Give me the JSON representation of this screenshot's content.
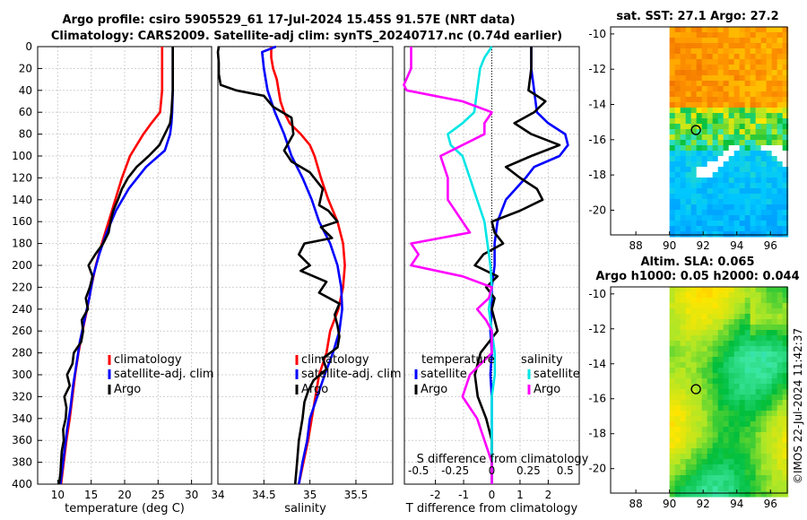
{
  "title_line1": "Argo profile: csiro 5905529_61 17-Jul-2024 15.45S 91.57E (NRT data)",
  "title_line2": "Climatology: CARS2009. Satellite-adj clim: synTS_20240717.nc (0.74d earlier)",
  "sst_title": "sat. SST: 27.1 Argo: 27.2",
  "sla_title1": "Altim. SLA: 0.065",
  "sla_title2": "Argo h1000: 0.05 h2000: 0.044",
  "side_stamp": "©IMOS 22-Jul-2024 11:42:37",
  "colors": {
    "climatology": "#ff0000",
    "satellite": "#0000ff",
    "argo": "#000000",
    "t_sat": "#0000ff",
    "s_sat": "#00e5e5",
    "s_argo": "#ff00ff"
  },
  "chart_data": [
    {
      "type": "line",
      "name": "temperature",
      "xlabel": "temperature (deg C)",
      "ylabel": "",
      "xlim": [
        7,
        33
      ],
      "ylim": [
        400,
        0
      ],
      "xticks": [
        10,
        15,
        20,
        25,
        30
      ],
      "yticks": [
        0,
        20,
        40,
        60,
        80,
        100,
        120,
        140,
        160,
        180,
        200,
        220,
        240,
        260,
        280,
        300,
        320,
        340,
        360,
        380,
        400
      ],
      "legend": [
        "climatology",
        "satellite-adj. clim",
        "Argo"
      ],
      "series": [
        {
          "name": "climatology",
          "color": "#ff0000",
          "depth": [
            0,
            20,
            40,
            60,
            70,
            80,
            100,
            120,
            140,
            160,
            180,
            200,
            220,
            240,
            260,
            280,
            300,
            320,
            340,
            360,
            380,
            400
          ],
          "values": [
            25.6,
            25.6,
            25.6,
            25.3,
            24.0,
            22.8,
            20.8,
            19.6,
            18.6,
            17.6,
            16.6,
            15.7,
            15.0,
            14.4,
            13.7,
            13.1,
            12.6,
            12.2,
            11.8,
            11.3,
            10.9,
            10.5
          ]
        },
        {
          "name": "satellite-adj. clim",
          "color": "#0000ff",
          "depth": [
            0,
            20,
            40,
            60,
            70,
            80,
            95,
            110,
            130,
            150,
            170,
            190,
            210,
            230,
            250,
            270,
            290,
            310,
            330,
            350,
            370,
            390,
            400
          ],
          "values": [
            27.2,
            27.2,
            27.2,
            27.1,
            27.0,
            26.8,
            26.0,
            23.2,
            20.6,
            18.7,
            17.3,
            16.2,
            15.3,
            14.7,
            14.0,
            13.3,
            12.8,
            12.3,
            11.9,
            11.4,
            11.0,
            10.6,
            10.4
          ]
        },
        {
          "name": "Argo",
          "color": "#000000",
          "depth": [
            0,
            20,
            40,
            60,
            70,
            80,
            90,
            100,
            110,
            120,
            130,
            140,
            150,
            160,
            170,
            180,
            190,
            200,
            210,
            220,
            230,
            240,
            250,
            260,
            270,
            280,
            290,
            300,
            310,
            320,
            330,
            340,
            350,
            360,
            370,
            380,
            390,
            400
          ],
          "values": [
            27.2,
            27.2,
            27.2,
            27.0,
            26.8,
            26.0,
            25.2,
            23.6,
            21.8,
            20.5,
            19.6,
            19.0,
            18.3,
            17.9,
            17.6,
            16.8,
            15.6,
            14.6,
            15.2,
            14.8,
            14.2,
            14.5,
            13.6,
            13.8,
            13.5,
            12.4,
            12.2,
            11.4,
            11.8,
            11.0,
            11.3,
            11.2,
            10.8,
            10.9,
            10.6,
            10.5,
            10.4,
            10.2
          ]
        }
      ]
    },
    {
      "type": "line",
      "name": "salinity",
      "xlabel": "salinity",
      "ylabel": "",
      "xlim": [
        34,
        35.9
      ],
      "ylim": [
        400,
        0
      ],
      "xticks": [
        34,
        34.5,
        35,
        35.5
      ],
      "legend": [
        "climatology",
        "satellite-adj. clim",
        "Argo"
      ],
      "series": [
        {
          "name": "climatology",
          "color": "#ff0000",
          "depth": [
            0,
            10,
            20,
            30,
            40,
            50,
            60,
            70,
            80,
            90,
            100,
            120,
            140,
            160,
            180,
            200,
            220,
            240,
            260,
            280,
            300,
            320,
            340,
            360,
            380,
            400
          ],
          "values": [
            34.58,
            34.58,
            34.6,
            34.64,
            34.66,
            34.68,
            34.72,
            34.78,
            34.9,
            35.0,
            35.05,
            35.12,
            35.2,
            35.3,
            35.36,
            35.38,
            35.36,
            35.31,
            35.22,
            35.18,
            35.1,
            35.06,
            35.02,
            34.98,
            34.93,
            34.88
          ]
        },
        {
          "name": "satellite-adj. clim",
          "color": "#0000ff",
          "depth": [
            0,
            5,
            20,
            40,
            60,
            80,
            100,
            120,
            140,
            160,
            180,
            200,
            220,
            240,
            260,
            280,
            300,
            320,
            340,
            360,
            380,
            400
          ],
          "values": [
            34.63,
            34.48,
            34.5,
            34.54,
            34.62,
            34.72,
            34.8,
            34.92,
            35.02,
            35.1,
            35.22,
            35.3,
            35.34,
            35.35,
            35.32,
            35.25,
            35.16,
            35.08,
            35.0,
            34.97,
            34.92,
            34.88
          ]
        },
        {
          "name": "Argo",
          "color": "#000000",
          "depth": [
            0,
            5,
            15,
            25,
            35,
            40,
            45,
            55,
            65,
            80,
            95,
            105,
            115,
            130,
            145,
            150,
            160,
            165,
            175,
            180,
            190,
            200,
            205,
            215,
            225,
            235,
            245,
            255,
            265,
            275,
            285,
            295,
            305,
            315,
            325,
            340,
            360,
            380,
            400
          ],
          "values": [
            34.01,
            34.0,
            34.01,
            34.01,
            34.03,
            34.2,
            34.5,
            34.6,
            34.8,
            34.82,
            34.72,
            34.8,
            35.0,
            35.14,
            35.1,
            35.2,
            35.3,
            35.12,
            35.24,
            34.94,
            34.88,
            35.0,
            34.9,
            35.18,
            35.1,
            35.32,
            35.27,
            35.3,
            35.32,
            35.3,
            35.14,
            35.18,
            35.04,
            34.98,
            34.94,
            34.92,
            34.88,
            34.86,
            34.84
          ]
        }
      ]
    },
    {
      "type": "line",
      "name": "T and S difference from climatology",
      "xlabel": "T difference from climatology",
      "x2label": "S difference from climatology",
      "xlim": [
        -3.1,
        3.1
      ],
      "ylim": [
        400,
        0
      ],
      "xticks": [
        -2,
        -1,
        0,
        1,
        2
      ],
      "x2ticks": [
        -0.5,
        -0.25,
        0,
        0.25,
        0.5
      ],
      "x2tick_labels": [
        "-0.5",
        "-0.25",
        "0",
        "0.25",
        "0.5"
      ],
      "legend": [
        "temperature",
        "satellite",
        "Argo",
        "salinity",
        "satellite",
        "Argo"
      ],
      "series": [
        {
          "name": "T satellite",
          "color": "#0000ff",
          "depth": [
            0,
            20,
            40,
            60,
            70,
            80,
            90,
            100,
            110,
            120,
            140,
            160,
            180,
            200,
            220,
            240,
            260,
            280,
            300,
            320,
            340,
            360,
            380,
            400
          ],
          "values": [
            1.4,
            1.4,
            1.5,
            1.6,
            2.0,
            2.6,
            2.7,
            2.4,
            1.5,
            1.2,
            0.5,
            0.2,
            0.1,
            0.1,
            0.0,
            0.0,
            -0.05,
            0.0,
            -0.05,
            0.0,
            0.0,
            0.0,
            0.0,
            0.0
          ]
        },
        {
          "name": "T Argo",
          "color": "#000000",
          "depth": [
            0,
            20,
            40,
            50,
            60,
            70,
            80,
            90,
            100,
            110,
            120,
            130,
            140,
            150,
            160,
            170,
            180,
            190,
            200,
            210,
            220,
            230,
            240,
            260,
            280,
            300,
            320,
            340,
            360,
            380,
            400
          ],
          "values": [
            1.4,
            1.4,
            1.3,
            1.9,
            1.5,
            0.8,
            1.4,
            2.4,
            1.4,
            0.5,
            1.0,
            1.6,
            1.8,
            1.0,
            0.0,
            0.1,
            0.4,
            -0.3,
            -0.6,
            0.2,
            -0.2,
            0.1,
            0.0,
            0.2,
            -0.4,
            -0.6,
            -0.5,
            -0.2,
            0.0,
            0.0,
            0.0
          ]
        },
        {
          "name": "S satellite",
          "color": "#00e5e5",
          "depth": [
            0,
            10,
            20,
            40,
            60,
            70,
            80,
            90,
            100,
            120,
            140,
            160,
            180,
            200,
            220,
            240,
            260,
            280,
            300,
            320,
            340,
            360,
            380,
            400
          ],
          "values": [
            0.0,
            -0.05,
            -0.08,
            -0.1,
            -0.12,
            -0.2,
            -0.3,
            -0.28,
            -0.2,
            -0.15,
            -0.1,
            -0.05,
            -0.03,
            -0.01,
            0.0,
            -0.02,
            0.0,
            0.02,
            0.02,
            0.0,
            0.0,
            0.0,
            0.0,
            0.0
          ]
        },
        {
          "name": "S Argo",
          "color": "#ff00ff",
          "depth": [
            0,
            20,
            35,
            40,
            50,
            60,
            70,
            80,
            90,
            100,
            120,
            140,
            160,
            170,
            180,
            190,
            200,
            210,
            220,
            230,
            240,
            250,
            260,
            280,
            300,
            320,
            340,
            360,
            380,
            400
          ],
          "values": [
            -0.55,
            -0.55,
            -0.6,
            -0.58,
            -0.2,
            0.0,
            -0.05,
            -0.05,
            -0.2,
            -0.35,
            -0.3,
            -0.3,
            -0.2,
            -0.15,
            -0.55,
            -0.5,
            -0.55,
            -0.2,
            0.0,
            -0.02,
            -0.1,
            -0.04,
            0.0,
            0.0,
            -0.15,
            -0.2,
            -0.1,
            -0.05,
            0.0,
            0.0
          ]
        }
      ]
    },
    {
      "type": "heatmap",
      "name": "satellite SST map",
      "title": "sat. SST: 27.1 Argo: 27.2",
      "xticks": [
        88,
        90,
        92,
        94,
        96
      ],
      "yticks": [
        -10,
        -12,
        -14,
        -16,
        -18,
        -20
      ],
      "xlim": [
        86.5,
        97
      ],
      "ylim": [
        -21.4,
        -9.6
      ],
      "data_lon_min": 90,
      "argo_lon": 91.57,
      "argo_lat": -15.45
    },
    {
      "type": "heatmap",
      "name": "altimetry SLA map",
      "title": "Altim. SLA: 0.065",
      "xticks": [
        88,
        90,
        92,
        94,
        96
      ],
      "yticks": [
        -10,
        -12,
        -14,
        -16,
        -18,
        -20
      ],
      "xlim": [
        86.5,
        97
      ],
      "ylim": [
        -21.4,
        -9.6
      ],
      "data_lon_min": 90,
      "argo_lon": 91.57,
      "argo_lat": -15.45
    }
  ]
}
